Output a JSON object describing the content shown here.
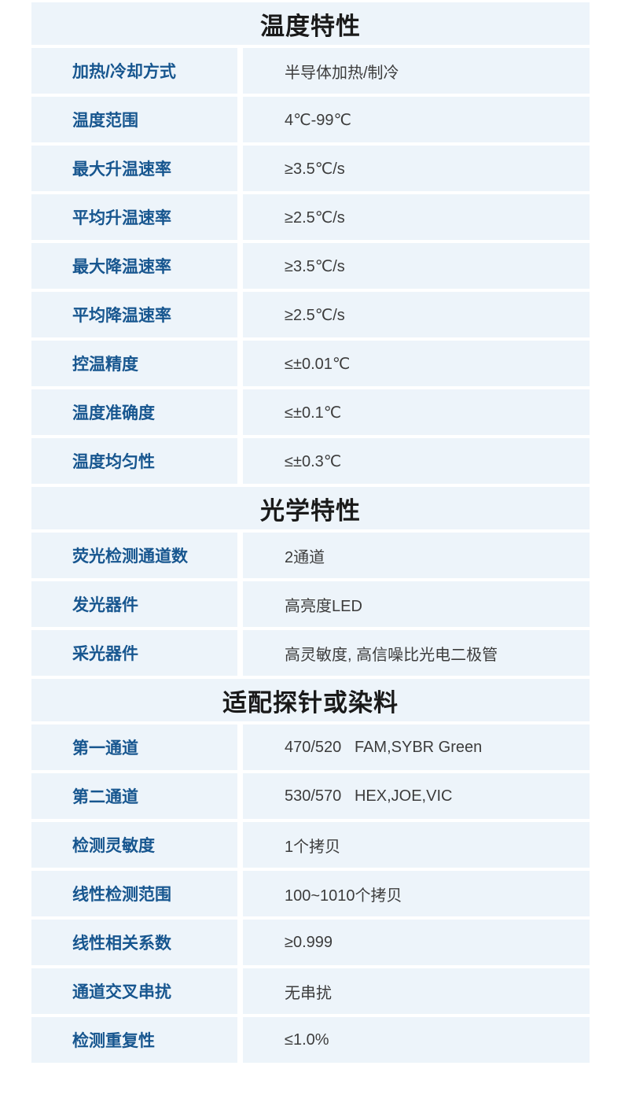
{
  "page": {
    "background": "#FFFFFF"
  },
  "table": {
    "colors": {
      "cell_background": "#EDF4FA",
      "gutter": "#FFFFFF",
      "section_title_text": "#1A1A1A",
      "label_text": "#17568F",
      "value_text": "#3C3C3C"
    },
    "sections": [
      {
        "title": "温度特性",
        "rows": [
          {
            "label": "加热/冷却方式",
            "value": "半导体加热/制冷"
          },
          {
            "label": "温度范围",
            "value": "4℃-99℃"
          },
          {
            "label": "最大升温速率",
            "value": "≥3.5℃/s"
          },
          {
            "label": "平均升温速率",
            "value": "≥2.5℃/s"
          },
          {
            "label": "最大降温速率",
            "value": "≥3.5℃/s"
          },
          {
            "label": "平均降温速率",
            "value": "≥2.5℃/s"
          },
          {
            "label": "控温精度",
            "value": "≤±0.01℃"
          },
          {
            "label": "温度准确度",
            "value": "≤±0.1℃"
          },
          {
            "label": "温度均匀性",
            "value": "≤±0.3℃"
          }
        ]
      },
      {
        "title": "光学特性",
        "rows": [
          {
            "label": "荧光检测通道数",
            "value": "2通道"
          },
          {
            "label": "发光器件",
            "value": "高亮度LED"
          },
          {
            "label": "采光器件",
            "value": "高灵敏度, 高信噪比光电二极管"
          }
        ]
      },
      {
        "title": "适配探针或染料",
        "rows": [
          {
            "label": "第一通道",
            "value": "470/520   FAM,SYBR Green"
          },
          {
            "label": "第二通道",
            "value": "530/570   HEX,JOE,VIC"
          },
          {
            "label": "检测灵敏度",
            "value": "1个拷贝"
          },
          {
            "label": "线性检测范围",
            "value": "100~1010个拷贝"
          },
          {
            "label": "线性相关系数",
            "value": "≥0.999"
          },
          {
            "label": "通道交叉串扰",
            "value": "无串扰"
          },
          {
            "label": "检测重复性",
            "value": "≤1.0%"
          }
        ]
      }
    ]
  }
}
